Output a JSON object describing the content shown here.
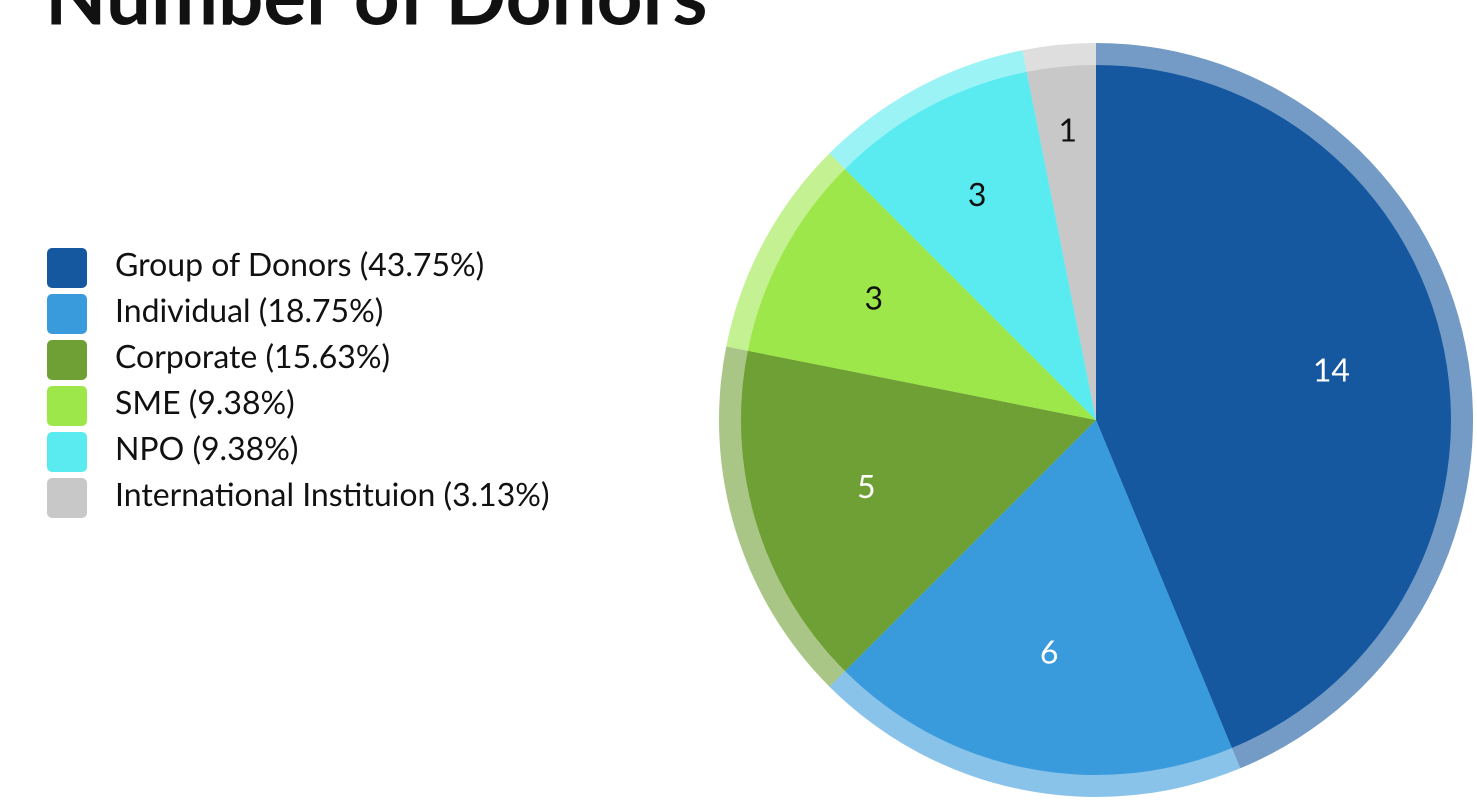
{
  "chart_data": {
    "type": "pie",
    "title": "Number of Donors",
    "categories": [
      "Group of Donors (43.75%)",
      "Individual (18.75%)",
      "Corporate (15.63%)",
      "SME (9.38%)",
      "NPO (9.38%)",
      "International Instituion (3.13%)"
    ],
    "values": [
      14,
      6,
      5,
      3,
      3,
      1
    ],
    "colors": [
      "#1658a0",
      "#3a9bdc",
      "#6fa035",
      "#9de74a",
      "#5aebf0",
      "#c8c8c8"
    ],
    "legend": "left"
  }
}
